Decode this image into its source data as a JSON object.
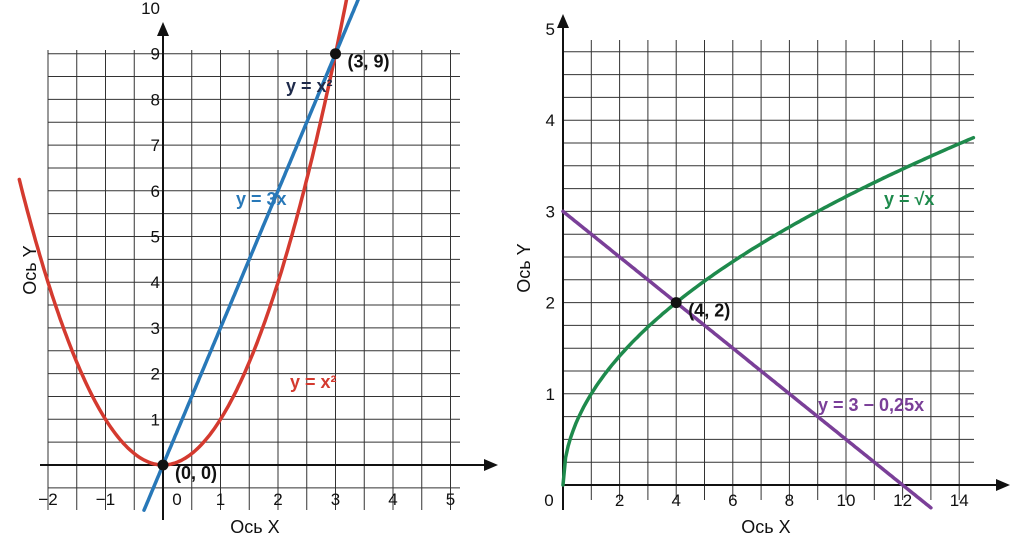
{
  "chart_data": [
    {
      "type": "line",
      "xlabel": "Ось X",
      "ylabel": "Ось Y",
      "xlim": [
        -2.5,
        5.5
      ],
      "ylim": [
        -1.0,
        10.3
      ],
      "xticks": [
        -2,
        -1,
        0,
        1,
        2,
        3,
        4,
        5
      ],
      "xtick_labels": [
        "−2",
        "−1",
        "0",
        "1",
        "2",
        "3",
        "4",
        "5"
      ],
      "yticks": [
        1,
        2,
        3,
        4,
        5,
        6,
        7,
        8,
        9,
        10
      ],
      "ytick_labels": [
        "1",
        "2",
        "3",
        "4",
        "5",
        "6",
        "7",
        "8",
        "9",
        "10"
      ],
      "grid": true,
      "series": [
        {
          "name": "y = x²",
          "formula": "x^2",
          "color": "#d43a2f",
          "x": [
            -2.5,
            -2,
            -1.5,
            -1,
            -0.5,
            0,
            0.5,
            1,
            1.5,
            2,
            2.5,
            3,
            3.2
          ],
          "y": [
            6.25,
            4,
            2.25,
            1,
            0.25,
            0,
            0.25,
            1,
            2.25,
            4,
            6.25,
            9,
            10.24
          ]
        },
        {
          "name": "y = 3x",
          "formula": "3*x",
          "color": "#2878b8",
          "x": [
            -0.33,
            0,
            1,
            2,
            3,
            3.43
          ],
          "y": [
            -1,
            0,
            3,
            6,
            9,
            10.3
          ]
        }
      ],
      "annotations": [
        {
          "text": "y = x²",
          "color": "#1e2a4a"
        },
        {
          "text": "y = 3x",
          "color": "#2878b8"
        },
        {
          "text": "y = x²",
          "color": "#d43a2f"
        }
      ],
      "points": [
        {
          "x": 0,
          "y": 0,
          "label": "(0, 0)"
        },
        {
          "x": 3,
          "y": 9,
          "label": "(3, 9)"
        }
      ]
    },
    {
      "type": "line",
      "xlabel": "Ось X",
      "ylabel": "Ось Y",
      "xlim": [
        0,
        14.5
      ],
      "ylim": [
        0,
        5.3
      ],
      "xticks": [
        0,
        2,
        4,
        6,
        8,
        10,
        12,
        14
      ],
      "xtick_labels": [
        "0",
        "2",
        "4",
        "6",
        "8",
        "10",
        "12",
        "14"
      ],
      "yticks": [
        1,
        2,
        3,
        4,
        5
      ],
      "ytick_labels": [
        "1",
        "2",
        "3",
        "4",
        "5"
      ],
      "grid": true,
      "series": [
        {
          "name": "y = √x",
          "formula": "sqrt(x)",
          "color": "#1e8a4c",
          "x": [
            0,
            1,
            2,
            4,
            6,
            8,
            10,
            12,
            14.5
          ],
          "y": [
            0,
            1,
            1.414,
            2,
            2.449,
            2.828,
            3.162,
            3.464,
            3.808
          ]
        },
        {
          "name": "y = 3 − 0,25x",
          "formula": "3-0.25*x",
          "color": "#7a3f98",
          "x": [
            0,
            4,
            12,
            13
          ],
          "y": [
            3,
            2,
            0,
            -0.25
          ]
        }
      ],
      "annotations": [
        {
          "text": "y = √x",
          "color": "#1e8a4c"
        },
        {
          "text": "y = 3 − 0,25x",
          "color": "#7a3f98"
        }
      ],
      "points": [
        {
          "x": 4,
          "y": 2,
          "label": "(4, 2)"
        }
      ]
    }
  ]
}
